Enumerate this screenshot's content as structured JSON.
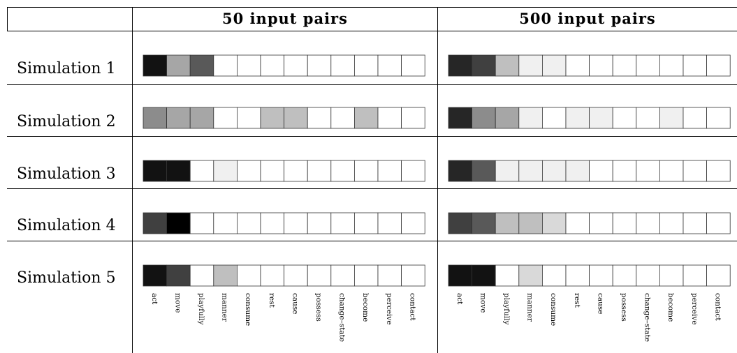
{
  "chart_data": {
    "type": "heatmap",
    "columns": [
      {
        "header": "50 input pairs",
        "rows": [
          [
            0.93,
            0.35,
            0.65,
            0,
            0,
            0,
            0,
            0,
            0,
            0,
            0,
            0
          ],
          [
            0.45,
            0.35,
            0.35,
            0,
            0,
            0.25,
            0.25,
            0,
            0,
            0.25,
            0,
            0
          ],
          [
            0.93,
            0.93,
            0,
            0.06,
            0,
            0,
            0,
            0,
            0,
            0,
            0,
            0
          ],
          [
            0.75,
            1.0,
            0,
            0,
            0,
            0,
            0,
            0,
            0,
            0,
            0,
            0
          ],
          [
            0.93,
            0.75,
            0,
            0.25,
            0,
            0,
            0,
            0,
            0,
            0,
            0,
            0
          ]
        ]
      },
      {
        "header": "500 input pairs",
        "rows": [
          [
            0.85,
            0.75,
            0.25,
            0.06,
            0.06,
            0,
            0,
            0,
            0,
            0,
            0,
            0
          ],
          [
            0.85,
            0.45,
            0.35,
            0.06,
            0,
            0.06,
            0.06,
            0,
            0,
            0.06,
            0,
            0
          ],
          [
            0.85,
            0.65,
            0.06,
            0.06,
            0.06,
            0.06,
            0,
            0,
            0,
            0,
            0,
            0
          ],
          [
            0.75,
            0.65,
            0.25,
            0.25,
            0.15,
            0,
            0,
            0,
            0,
            0,
            0,
            0
          ],
          [
            0.93,
            0.93,
            0,
            0.15,
            0,
            0,
            0,
            0,
            0,
            0,
            0,
            0
          ]
        ]
      }
    ],
    "row_labels": [
      "Simulation 1",
      "Simulation 2",
      "Simulation 3",
      "Simulation 4",
      "Simulation 5"
    ],
    "x_labels": [
      "act",
      "move",
      "playfully",
      "manner",
      "consume",
      "rest",
      "cause",
      "possess",
      "change–state",
      "become",
      "perceive",
      "contact"
    ],
    "value_meaning": "darkness of cell",
    "ylim": [
      0,
      1
    ]
  }
}
